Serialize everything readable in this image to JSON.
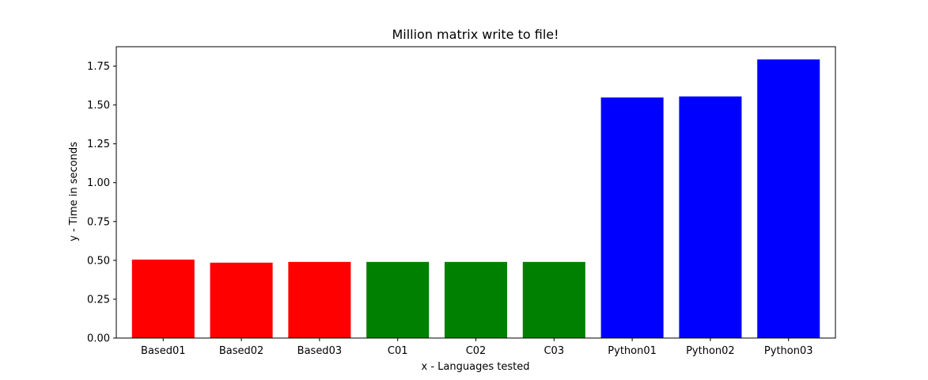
{
  "chart_data": {
    "type": "bar",
    "title": "Million matrix write to file!",
    "xlabel": "x - Languages tested",
    "ylabel": "y - Time in seconds",
    "categories": [
      "Based01",
      "Based02",
      "Based03",
      "C01",
      "C02",
      "C03",
      "Python01",
      "Python02",
      "Python03"
    ],
    "values": [
      0.505,
      0.485,
      0.49,
      0.49,
      0.49,
      0.49,
      1.548,
      1.555,
      1.793
    ],
    "colors": [
      "#ff0000",
      "#ff0000",
      "#ff0000",
      "#008000",
      "#008000",
      "#008000",
      "#0000ff",
      "#0000ff",
      "#0000ff"
    ],
    "ylim": [
      0,
      1.875
    ],
    "yticks": [
      "0.00",
      "0.25",
      "0.50",
      "0.75",
      "1.00",
      "1.25",
      "1.50",
      "1.75"
    ],
    "grid": false,
    "legend": "none"
  }
}
